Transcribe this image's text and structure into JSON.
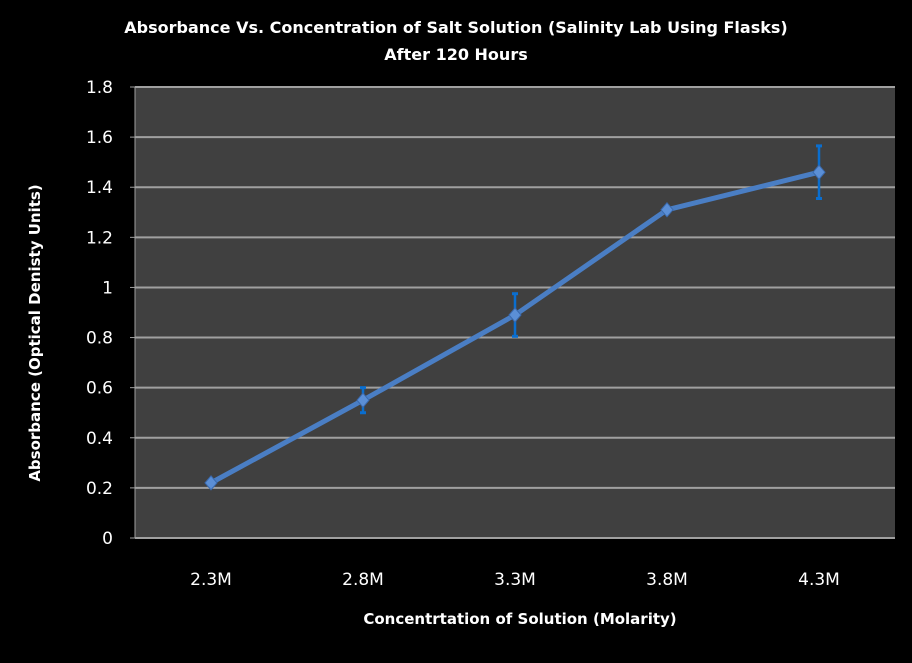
{
  "chart_data": {
    "type": "line",
    "title": "Absorbance Vs. Concentration of Salt Solution (Salinity Lab Using Flasks)",
    "subtitle": "After 120 Hours",
    "xlabel": "Concentrtation of Solution  (Molarity)",
    "ylabel": "Absorbance  (Optical Denisty  Units)",
    "categories": [
      "2.3M",
      "2.8M",
      "3.3M",
      "3.8M",
      "4.3M"
    ],
    "values": [
      0.22,
      0.55,
      0.89,
      1.31,
      1.46
    ],
    "error": [
      0,
      0.05,
      0.085,
      0,
      0.105
    ],
    "ylim": [
      0,
      1.8
    ],
    "yticks": [
      "0",
      "0.2",
      "0.4",
      "0.6",
      "0.8",
      "1",
      "1.2",
      "1.4",
      "1.6",
      "1.8"
    ],
    "grid": true,
    "legend": "none",
    "colors": {
      "line": "#4a7ec4",
      "error": "#0a6ecf",
      "plot_bg": "#404040",
      "grid": "#a0a0a0",
      "background": "#000000"
    }
  }
}
